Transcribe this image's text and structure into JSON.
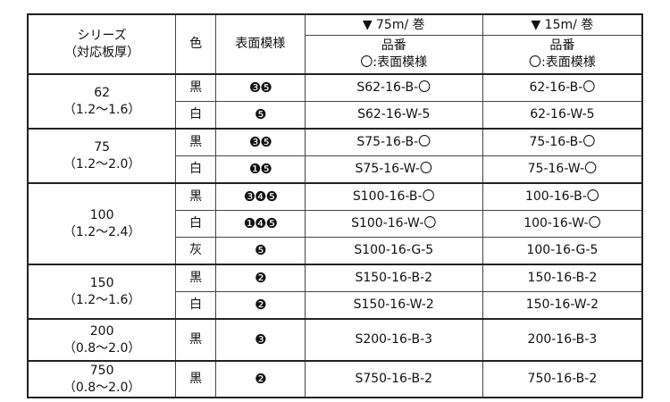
{
  "header": {
    "series": "シリーズ",
    "thickness": "（対応板厚）",
    "color": "色",
    "pattern": "表面模様",
    "roll75": "▼ 75m/ 巻",
    "roll15": "▼ 15m/ 巻",
    "part_no": "品番",
    "pattern_note": "〇:表面模様"
  },
  "groups": [
    {
      "series": "62",
      "range": "（1.2～1.6）",
      "rows": [
        {
          "color": "黒",
          "pattern": "❸❺",
          "p75": "S62-16-B-〇",
          "p15": "62-16-B-〇"
        },
        {
          "color": "白",
          "pattern": "❺",
          "p75": "S62-16-W-5",
          "p15": "62-16-W-5"
        }
      ]
    },
    {
      "series": "75",
      "range": "（1.2～2.0）",
      "rows": [
        {
          "color": "黒",
          "pattern": "❸❺",
          "p75": "S75-16-B-〇",
          "p15": "75-16-B-〇"
        },
        {
          "color": "白",
          "pattern": "❶❺",
          "p75": "S75-16-W-〇",
          "p15": "75-16-W-〇"
        }
      ]
    },
    {
      "series": "100",
      "range": "（1.2～2.4）",
      "rows": [
        {
          "color": "黒",
          "pattern": "❸❹❺",
          "p75": "S100-16-B-〇",
          "p15": "100-16-B-〇"
        },
        {
          "color": "白",
          "pattern": "❶❹❺",
          "p75": "S100-16-W-〇",
          "p15": "100-16-W-〇"
        },
        {
          "color": "灰",
          "pattern": "❺",
          "p75": "S100-16-G-5",
          "p15": "100-16-G-5"
        }
      ]
    },
    {
      "series": "150",
      "range": "（1.2～1.6）",
      "rows": [
        {
          "color": "黒",
          "pattern": "❷",
          "p75": "S150-16-B-2",
          "p15": "150-16-B-2"
        },
        {
          "color": "白",
          "pattern": "❷",
          "p75": "S150-16-W-2",
          "p15": "150-16-W-2"
        }
      ]
    },
    {
      "series": "200",
      "range": "（0.8～2.0）",
      "rows": [
        {
          "color": "黒",
          "pattern": "❸",
          "p75": "S200-16-B-3",
          "p15": "200-16-B-3"
        }
      ]
    },
    {
      "series": "750",
      "range": "（0.8～2.0）",
      "rows": [
        {
          "color": "黒",
          "pattern": "❷",
          "p75": "S750-16-B-2",
          "p15": "750-16-B-2"
        }
      ]
    }
  ]
}
